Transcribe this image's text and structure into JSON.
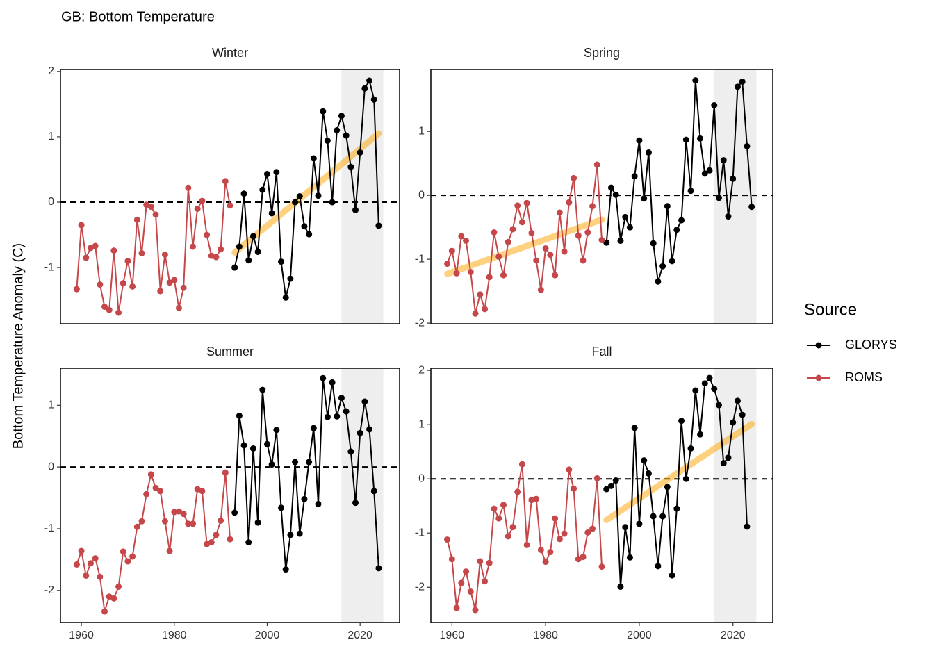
{
  "figure": {
    "title": "GB: Bottom Temperature",
    "ylabel": "Bottom Temperature Anomaly (C)",
    "legend_title": "Source",
    "legend_position": "right"
  },
  "chart_data": [
    {
      "type": "line",
      "title": "Winter",
      "xlim": [
        1955.5,
        2028.5
      ],
      "ylim": [
        -1.86,
        2.03
      ],
      "yticks": [
        -1,
        0,
        1,
        2
      ],
      "hline": 0,
      "shade": [
        2016,
        2025
      ],
      "trend": {
        "color": "#FFA500",
        "x": [
          1993,
          2024
        ],
        "values": [
          -0.77,
          1.05
        ]
      },
      "series": [
        {
          "name": "GLORYS",
          "color": "#000000",
          "x": [
            1993,
            1994,
            1995,
            1996,
            1997,
            1998,
            1999,
            2000,
            2001,
            2002,
            2003,
            2004,
            2005,
            2006,
            2007,
            2008,
            2009,
            2010,
            2011,
            2012,
            2013,
            2014,
            2015,
            2016,
            2017,
            2018,
            2019,
            2020,
            2021,
            2022,
            2023,
            2024
          ],
          "values": [
            -1.0,
            -0.68,
            0.13,
            -0.89,
            -0.52,
            -0.76,
            0.19,
            0.43,
            -0.17,
            0.46,
            -0.91,
            -1.46,
            -1.17,
            0.0,
            0.09,
            -0.37,
            -0.49,
            0.67,
            0.1,
            1.39,
            0.94,
            0.0,
            1.1,
            1.32,
            1.02,
            0.54,
            -0.12,
            0.76,
            1.74,
            1.86,
            1.57,
            -0.36
          ]
        },
        {
          "name": "ROMS",
          "color": "#C5474A",
          "x": [
            1959,
            1960,
            1961,
            1962,
            1963,
            1964,
            1965,
            1966,
            1967,
            1968,
            1969,
            1970,
            1971,
            1972,
            1973,
            1974,
            1975,
            1976,
            1977,
            1978,
            1979,
            1980,
            1981,
            1982,
            1983,
            1984,
            1985,
            1986,
            1987,
            1988,
            1989,
            1990,
            1991,
            1992
          ],
          "values": [
            -1.33,
            -0.35,
            -0.85,
            -0.7,
            -0.67,
            -1.26,
            -1.6,
            -1.65,
            -0.74,
            -1.69,
            -1.24,
            -0.9,
            -1.29,
            -0.27,
            -0.78,
            -0.04,
            -0.07,
            -0.19,
            -1.36,
            -0.8,
            -1.23,
            -1.19,
            -1.62,
            -1.31,
            0.22,
            -0.68,
            -0.1,
            0.02,
            -0.5,
            -0.82,
            -0.84,
            -0.72,
            0.32,
            -0.05
          ]
        }
      ]
    },
    {
      "type": "line",
      "title": "Spring",
      "xlim": [
        1955.5,
        2028.5
      ],
      "ylim": [
        -2.01,
        1.97
      ],
      "yticks": [
        -2,
        -1,
        0,
        1
      ],
      "hline": 0,
      "shade": [
        2016,
        2025
      ],
      "trend": {
        "color": "#FFA500",
        "x": [
          1959,
          1992
        ],
        "values": [
          -1.23,
          -0.38
        ]
      },
      "series": [
        {
          "name": "GLORYS",
          "color": "#000000",
          "x": [
            1993,
            1994,
            1995,
            1996,
            1997,
            1998,
            1999,
            2000,
            2001,
            2002,
            2003,
            2004,
            2005,
            2006,
            2007,
            2008,
            2009,
            2010,
            2011,
            2012,
            2013,
            2014,
            2015,
            2016,
            2017,
            2018,
            2019,
            2020,
            2021,
            2022,
            2023,
            2024
          ],
          "values": [
            -0.74,
            0.12,
            0.01,
            -0.71,
            -0.34,
            -0.5,
            0.3,
            0.86,
            -0.05,
            0.67,
            -0.75,
            -1.35,
            -1.11,
            -0.17,
            -1.03,
            -0.54,
            -0.39,
            0.87,
            0.07,
            1.8,
            0.89,
            0.34,
            0.39,
            1.41,
            -0.04,
            0.55,
            -0.33,
            0.26,
            1.7,
            1.78,
            0.77,
            -0.18
          ]
        },
        {
          "name": "ROMS",
          "color": "#C5474A",
          "x": [
            1959,
            1960,
            1961,
            1962,
            1963,
            1964,
            1965,
            1966,
            1967,
            1968,
            1969,
            1970,
            1971,
            1972,
            1973,
            1974,
            1975,
            1976,
            1977,
            1978,
            1979,
            1980,
            1981,
            1982,
            1983,
            1984,
            1985,
            1986,
            1987,
            1988,
            1989,
            1990,
            1991,
            1992
          ],
          "values": [
            -1.07,
            -0.87,
            -1.22,
            -0.64,
            -0.71,
            -1.2,
            -1.85,
            -1.55,
            -1.78,
            -1.28,
            -0.58,
            -0.96,
            -1.25,
            -0.73,
            -0.53,
            -0.16,
            -0.42,
            -0.12,
            -0.59,
            -1.02,
            -1.48,
            -0.83,
            -0.93,
            -1.25,
            -0.27,
            -0.88,
            -0.11,
            0.27,
            -0.63,
            -1.02,
            -0.58,
            -0.17,
            0.48,
            -0.7
          ]
        }
      ]
    },
    {
      "type": "line",
      "title": "Summer",
      "xlim": [
        1955.5,
        2028.5
      ],
      "xticks": [
        1960,
        1980,
        2000,
        2020
      ],
      "ylim": [
        -2.52,
        1.6
      ],
      "yticks": [
        -2,
        -1,
        0,
        1
      ],
      "hline": 0,
      "shade": [
        2016,
        2025
      ],
      "series": [
        {
          "name": "GLORYS",
          "color": "#000000",
          "x": [
            1993,
            1994,
            1995,
            1996,
            1997,
            1998,
            1999,
            2000,
            2001,
            2002,
            2003,
            2004,
            2005,
            2006,
            2007,
            2008,
            2009,
            2010,
            2011,
            2012,
            2013,
            2014,
            2015,
            2016,
            2017,
            2018,
            2019,
            2020,
            2021,
            2022,
            2023,
            2024
          ],
          "values": [
            -0.74,
            0.83,
            0.35,
            -1.22,
            0.3,
            -0.9,
            1.25,
            0.37,
            0.04,
            0.6,
            -0.66,
            -1.66,
            -1.1,
            0.08,
            -1.08,
            -0.52,
            0.08,
            0.63,
            -0.6,
            1.44,
            0.81,
            1.37,
            0.82,
            1.12,
            0.9,
            0.25,
            -0.58,
            0.55,
            1.06,
            0.61,
            -0.39,
            -1.64
          ]
        },
        {
          "name": "ROMS",
          "color": "#C5474A",
          "x": [
            1959,
            1960,
            1961,
            1962,
            1963,
            1964,
            1965,
            1966,
            1967,
            1968,
            1969,
            1970,
            1971,
            1972,
            1973,
            1974,
            1975,
            1976,
            1977,
            1978,
            1979,
            1980,
            1981,
            1982,
            1983,
            1984,
            1985,
            1986,
            1987,
            1988,
            1989,
            1990,
            1991,
            1992
          ],
          "values": [
            -1.58,
            -1.36,
            -1.76,
            -1.56,
            -1.48,
            -1.78,
            -2.34,
            -2.1,
            -2.13,
            -1.94,
            -1.37,
            -1.53,
            -1.45,
            -0.97,
            -0.88,
            -0.44,
            -0.12,
            -0.34,
            -0.39,
            -0.88,
            -1.36,
            -0.73,
            -0.72,
            -0.76,
            -0.92,
            -0.92,
            -0.36,
            -0.39,
            -1.25,
            -1.22,
            -1.1,
            -0.87,
            -0.09,
            -1.17
          ]
        }
      ]
    },
    {
      "type": "line",
      "title": "Fall",
      "xlim": [
        1955.5,
        2028.5
      ],
      "xticks": [
        1960,
        1980,
        2000,
        2020
      ],
      "ylim": [
        -2.65,
        2.04
      ],
      "yticks": [
        -2,
        -1,
        0,
        1,
        2
      ],
      "hline": 0,
      "shade": [
        2016,
        2025
      ],
      "trend": {
        "color": "#FFA500",
        "x": [
          1993,
          2024
        ],
        "values": [
          -0.76,
          1.01
        ]
      },
      "series": [
        {
          "name": "GLORYS",
          "color": "#000000",
          "x": [
            1993,
            1994,
            1995,
            1996,
            1997,
            1998,
            1999,
            2000,
            2001,
            2002,
            2003,
            2004,
            2005,
            2006,
            2007,
            2008,
            2009,
            2010,
            2011,
            2012,
            2013,
            2014,
            2015,
            2016,
            2017,
            2018,
            2019,
            2020,
            2021,
            2022,
            2023
          ],
          "values": [
            -0.19,
            -0.13,
            -0.03,
            -1.99,
            -0.89,
            -1.45,
            0.94,
            -0.83,
            0.34,
            0.1,
            -0.69,
            -1.61,
            -0.69,
            -0.15,
            -1.78,
            -0.55,
            1.07,
            0.0,
            0.56,
            1.63,
            0.82,
            1.76,
            1.86,
            1.66,
            1.36,
            0.29,
            0.39,
            1.04,
            1.44,
            1.18,
            -0.88
          ]
        },
        {
          "name": "ROMS",
          "color": "#C5474A",
          "x": [
            1959,
            1960,
            1961,
            1962,
            1963,
            1964,
            1965,
            1966,
            1967,
            1968,
            1969,
            1970,
            1971,
            1972,
            1973,
            1974,
            1975,
            1976,
            1977,
            1978,
            1979,
            1980,
            1981,
            1982,
            1983,
            1984,
            1985,
            1986,
            1987,
            1988,
            1989,
            1990,
            1991,
            1992
          ],
          "values": [
            -1.12,
            -1.48,
            -2.38,
            -1.92,
            -1.71,
            -2.08,
            -2.42,
            -1.52,
            -1.89,
            -1.55,
            -0.55,
            -0.73,
            -0.48,
            -1.06,
            -0.89,
            -0.24,
            0.27,
            -1.22,
            -0.39,
            -0.37,
            -1.31,
            -1.53,
            -1.35,
            -0.73,
            -1.11,
            -1.01,
            0.17,
            -0.18,
            -1.48,
            -1.44,
            -0.99,
            -0.92,
            0.01,
            -1.62
          ]
        }
      ]
    }
  ]
}
